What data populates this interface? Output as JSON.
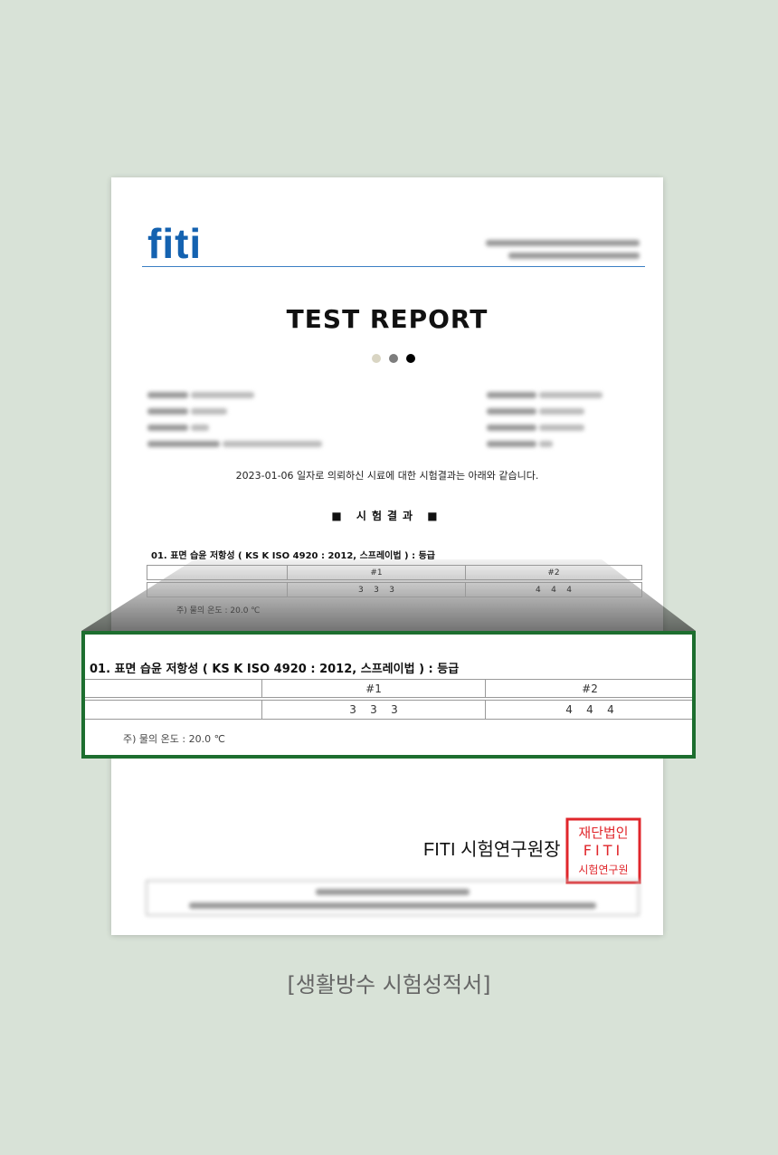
{
  "document": {
    "logo": "fiti",
    "title": "TEST REPORT",
    "dot_colors": [
      "#d9d5c3",
      "#7d7d7d",
      "#000000"
    ],
    "intro_sentence": "2023-01-06 일자로 의뢰하신 시료에 대한 시험결과는 아래와 같습니다.",
    "section_heading": "■ 시험결과 ■",
    "test": {
      "heading": "01.  표면 습윤 저항성 ( KS K ISO 4920 : 2012, 스프레이법 ) : 등급",
      "columns": [
        "",
        "#1",
        "#2"
      ],
      "rows": [
        [
          "",
          "3    3    3",
          "4    4    4"
        ]
      ],
      "note": "주) 물의 온도 : 20.0 ℃"
    },
    "signature": "FITI 시험연구원장",
    "stamp_lettering": [
      "재단법인",
      "FITI",
      "시험연구원"
    ],
    "stamp_color": "#e0262b"
  },
  "zoom_highlight": {
    "border_color": "#1d6e2f",
    "heading": "01.  표면 습윤 저항성 ( KS K ISO 4920 : 2012, 스프레이법 ) : 등급",
    "columns": [
      "",
      "#1",
      "#2"
    ],
    "rows": [
      [
        "",
        "3    3    3",
        "4    4    4"
      ]
    ],
    "note": "주) 물의 온도 : 20.0 ℃"
  },
  "caption": "[생활방수 시험성적서]"
}
